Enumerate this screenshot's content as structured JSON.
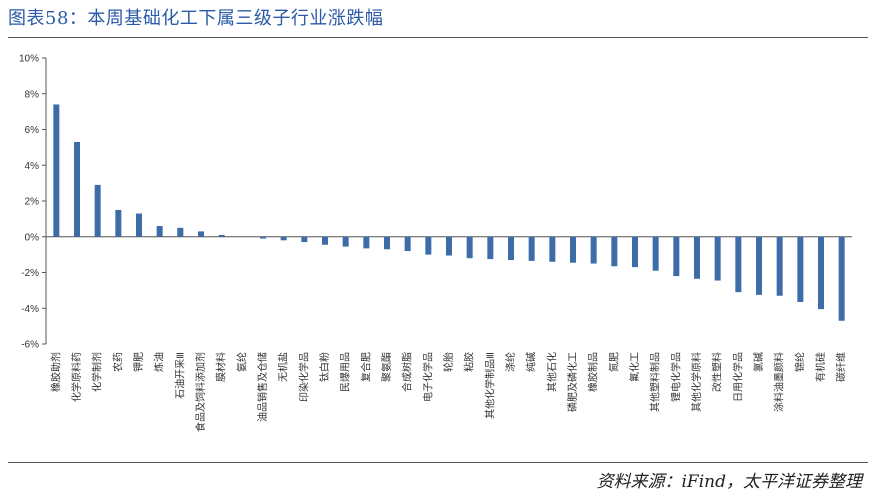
{
  "header": {
    "title": "图表58：本周基础化工下属三级子行业涨跌幅"
  },
  "footer": {
    "source": "资料来源：iFind，太平洋证券整理"
  },
  "colors": {
    "bar": "#3d6da8",
    "title": "#2a5aa8"
  },
  "chart_data": {
    "type": "bar",
    "title": "",
    "xlabel": "",
    "ylabel": "",
    "ylim": [
      -6,
      10
    ],
    "yticks": [
      "10%",
      "8%",
      "6%",
      "4%",
      "2%",
      "0%",
      "-2%",
      "-4%",
      "-6%"
    ],
    "grid": false,
    "legend": "none",
    "unit": "%",
    "categories": [
      "橡胶助剂",
      "化学原料药",
      "化学制剂",
      "农药",
      "钾肥",
      "炼油",
      "石油开采Ⅲ",
      "食品及饲料添加剂",
      "膜材料",
      "氨纶",
      "油品销售及仓储",
      "无机盐",
      "印染化学品",
      "钛白粉",
      "民爆用品",
      "复合肥",
      "聚氨酯",
      "合成树脂",
      "电子化学品",
      "轮胎",
      "粘胶",
      "其他化学制品Ⅲ",
      "涤纶",
      "纯碱",
      "其他石化",
      "磷肥及磷化工",
      "橡胶制品",
      "氮肥",
      "氟化工",
      "其他塑料制品",
      "锂电化学品",
      "其他化学原料",
      "改性塑料",
      "日用化学品",
      "氯碱",
      "涂料油墨颜料",
      "锦纶",
      "有机硅",
      "碳纤维"
    ],
    "values": [
      7.4,
      5.3,
      2.9,
      1.5,
      1.3,
      0.6,
      0.5,
      0.3,
      0.1,
      0.0,
      -0.1,
      -0.2,
      -0.3,
      -0.45,
      -0.55,
      -0.65,
      -0.7,
      -0.8,
      -1.0,
      -1.05,
      -1.2,
      -1.25,
      -1.3,
      -1.35,
      -1.4,
      -1.45,
      -1.5,
      -1.65,
      -1.7,
      -1.9,
      -2.2,
      -2.35,
      -2.45,
      -3.1,
      -3.25,
      -3.3,
      -3.65,
      -4.05,
      -4.7
    ]
  }
}
